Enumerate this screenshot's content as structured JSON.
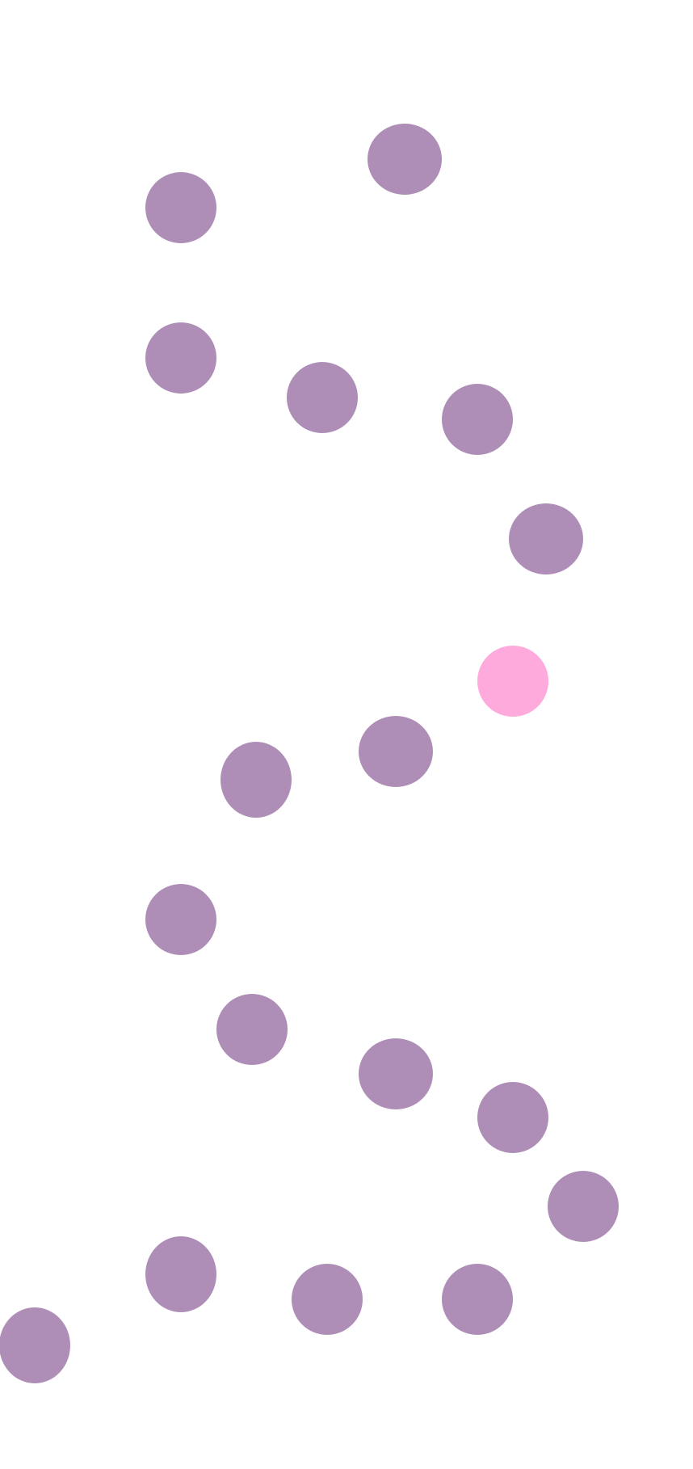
{
  "colors": {
    "background": "#ffffff",
    "dot_default": "#ae8eb7",
    "dot_highlight": "#ffaadd"
  },
  "dots": [
    {
      "id": "dot-01",
      "state": "default"
    },
    {
      "id": "dot-02",
      "state": "default"
    },
    {
      "id": "dot-03",
      "state": "default"
    },
    {
      "id": "dot-04",
      "state": "default"
    },
    {
      "id": "dot-05",
      "state": "default"
    },
    {
      "id": "dot-06",
      "state": "default"
    },
    {
      "id": "dot-07",
      "state": "highlighted"
    },
    {
      "id": "dot-08",
      "state": "default"
    },
    {
      "id": "dot-09",
      "state": "default"
    },
    {
      "id": "dot-10",
      "state": "default"
    },
    {
      "id": "dot-11",
      "state": "default"
    },
    {
      "id": "dot-12",
      "state": "default"
    },
    {
      "id": "dot-13",
      "state": "default"
    },
    {
      "id": "dot-14",
      "state": "default"
    },
    {
      "id": "dot-15",
      "state": "default"
    },
    {
      "id": "dot-16",
      "state": "default"
    },
    {
      "id": "dot-17",
      "state": "default"
    },
    {
      "id": "dot-18",
      "state": "default"
    }
  ]
}
